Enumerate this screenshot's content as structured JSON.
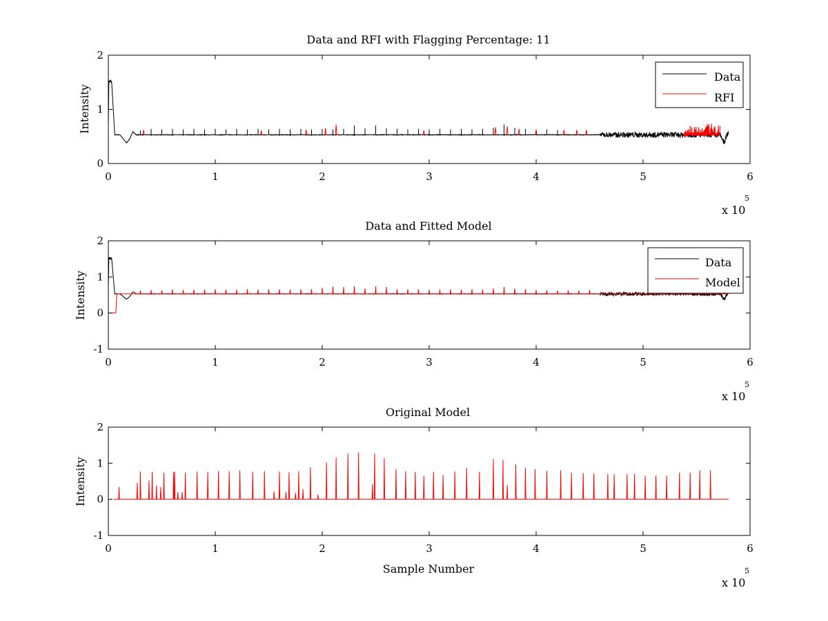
{
  "chart_data": [
    {
      "type": "line",
      "title": "Data and RFI with Flagging Percentage: 11",
      "xlabel": "",
      "ylabel": "Intensity",
      "xlim": [
        0,
        6
      ],
      "ylim": [
        0,
        2
      ],
      "x_ticks": [
        0,
        1,
        2,
        3,
        4,
        5,
        6
      ],
      "y_ticks": [
        0,
        1,
        2
      ],
      "x_multiplier": "x 10",
      "x_multiplier_exp": "5",
      "legend": {
        "position": "top-right",
        "entries": [
          {
            "label": "Data",
            "color": "#000000"
          },
          {
            "label": "RFI",
            "color": "#ff0000"
          }
        ]
      },
      "x_end": 5.8,
      "baseline": 0.53,
      "initial_peak": 1.55,
      "dip": {
        "x": 0.17,
        "value": 0.38
      },
      "end_dip": {
        "x": 5.76,
        "value": 0.38
      },
      "noisy_region": {
        "start": 4.6,
        "end": 5.8,
        "amplitude": 0.05
      },
      "rfi_dense_region": {
        "start": 5.38,
        "end": 5.72,
        "max": 0.74
      },
      "series": [
        {
          "name": "Data",
          "color": "#000000",
          "spikes": [
            [
              0.3,
              0.61
            ],
            [
              0.4,
              0.64
            ],
            [
              0.5,
              0.63
            ],
            [
              0.6,
              0.64
            ],
            [
              0.7,
              0.63
            ],
            [
              0.8,
              0.64
            ],
            [
              0.9,
              0.63
            ],
            [
              1.0,
              0.64
            ],
            [
              1.1,
              0.63
            ],
            [
              1.2,
              0.64
            ],
            [
              1.3,
              0.63
            ],
            [
              1.4,
              0.64
            ],
            [
              1.5,
              0.63
            ],
            [
              1.6,
              0.64
            ],
            [
              1.7,
              0.63
            ],
            [
              1.8,
              0.64
            ],
            [
              1.9,
              0.63
            ],
            [
              2.0,
              0.64
            ],
            [
              2.1,
              0.63
            ],
            [
              2.2,
              0.64
            ],
            [
              2.3,
              0.7
            ],
            [
              2.4,
              0.65
            ],
            [
              2.5,
              0.7
            ],
            [
              2.6,
              0.65
            ],
            [
              2.7,
              0.64
            ],
            [
              2.8,
              0.63
            ],
            [
              2.9,
              0.64
            ],
            [
              3.0,
              0.63
            ],
            [
              3.1,
              0.64
            ],
            [
              3.2,
              0.63
            ],
            [
              3.3,
              0.64
            ],
            [
              3.4,
              0.63
            ],
            [
              3.5,
              0.64
            ],
            [
              3.6,
              0.66
            ],
            [
              3.7,
              0.72
            ],
            [
              3.8,
              0.66
            ],
            [
              3.9,
              0.64
            ],
            [
              4.0,
              0.63
            ],
            [
              4.1,
              0.63
            ],
            [
              4.2,
              0.62
            ]
          ]
        },
        {
          "name": "RFI",
          "color": "#ff0000",
          "spikes": [
            [
              0.33,
              0.62
            ],
            [
              1.43,
              0.61
            ],
            [
              1.85,
              0.62
            ],
            [
              2.03,
              0.65
            ],
            [
              2.13,
              0.72
            ],
            [
              2.95,
              0.61
            ],
            [
              3.62,
              0.67
            ],
            [
              3.73,
              0.69
            ],
            [
              3.84,
              0.64
            ],
            [
              4.0,
              0.63
            ],
            [
              4.26,
              0.62
            ],
            [
              4.38,
              0.62
            ],
            [
              4.47,
              0.62
            ]
          ]
        }
      ]
    },
    {
      "type": "line",
      "title": "Data and Fitted Model",
      "xlabel": "",
      "ylabel": "Intensity",
      "xlim": [
        0,
        6
      ],
      "ylim": [
        -1,
        2
      ],
      "x_ticks": [
        0,
        1,
        2,
        3,
        4,
        5,
        6
      ],
      "y_ticks": [
        -1,
        0,
        1,
        2
      ],
      "x_multiplier": "x 10",
      "x_multiplier_exp": "5",
      "legend": {
        "position": "top-right",
        "entries": [
          {
            "label": "Data",
            "color": "#000000"
          },
          {
            "label": "Model",
            "color": "#ff0000"
          }
        ]
      },
      "x_end": 5.8,
      "baseline": 0.53,
      "initial_peak": 1.55,
      "model_start_step": {
        "x": 0.07,
        "value": 0.0
      },
      "dip": {
        "x": 0.17,
        "value": 0.38
      },
      "end_dip": {
        "x": 5.76,
        "value": 0.38
      },
      "noisy_region": {
        "start": 4.6,
        "end": 5.8,
        "amplitude": 0.05
      },
      "series": [
        {
          "name": "Data",
          "color": "#000000"
        },
        {
          "name": "Model",
          "color": "#ff0000",
          "spikes": [
            [
              0.3,
              0.62
            ],
            [
              0.4,
              0.64
            ],
            [
              0.5,
              0.63
            ],
            [
              0.6,
              0.66
            ],
            [
              0.7,
              0.64
            ],
            [
              0.8,
              0.65
            ],
            [
              0.9,
              0.65
            ],
            [
              1.0,
              0.66
            ],
            [
              1.1,
              0.65
            ],
            [
              1.2,
              0.65
            ],
            [
              1.3,
              0.66
            ],
            [
              1.4,
              0.65
            ],
            [
              1.5,
              0.66
            ],
            [
              1.6,
              0.66
            ],
            [
              1.7,
              0.65
            ],
            [
              1.8,
              0.66
            ],
            [
              1.9,
              0.66
            ],
            [
              2.0,
              0.7
            ],
            [
              2.1,
              0.73
            ],
            [
              2.2,
              0.72
            ],
            [
              2.3,
              0.74
            ],
            [
              2.4,
              0.68
            ],
            [
              2.5,
              0.74
            ],
            [
              2.6,
              0.72
            ],
            [
              2.7,
              0.66
            ],
            [
              2.8,
              0.66
            ],
            [
              2.9,
              0.66
            ],
            [
              3.0,
              0.65
            ],
            [
              3.1,
              0.65
            ],
            [
              3.2,
              0.66
            ],
            [
              3.3,
              0.65
            ],
            [
              3.4,
              0.66
            ],
            [
              3.5,
              0.65
            ],
            [
              3.6,
              0.68
            ],
            [
              3.7,
              0.72
            ],
            [
              3.8,
              0.68
            ],
            [
              3.9,
              0.66
            ],
            [
              4.0,
              0.64
            ],
            [
              4.1,
              0.63
            ],
            [
              4.2,
              0.62
            ],
            [
              4.3,
              0.63
            ],
            [
              4.4,
              0.62
            ],
            [
              4.5,
              0.64
            ]
          ]
        }
      ]
    },
    {
      "type": "line",
      "title": "Original Model",
      "xlabel": "Sample Number",
      "ylabel": "Intensity",
      "xlim": [
        0,
        6
      ],
      "ylim": [
        -1,
        2
      ],
      "x_ticks": [
        0,
        1,
        2,
        3,
        4,
        5,
        6
      ],
      "y_ticks": [
        -1,
        0,
        1,
        2
      ],
      "x_multiplier": "x 10",
      "x_multiplier_exp": "5",
      "x_start": 0.05,
      "x_end": 5.8,
      "baseline": 0.0,
      "series": [
        {
          "name": "",
          "color": "#ff0000",
          "spikes": [
            [
              0.1,
              0.34
            ],
            [
              0.27,
              0.45
            ],
            [
              0.3,
              0.77
            ],
            [
              0.38,
              0.52
            ],
            [
              0.41,
              0.76
            ],
            [
              0.45,
              0.38
            ],
            [
              0.49,
              0.34
            ],
            [
              0.52,
              0.74
            ],
            [
              0.61,
              0.75
            ],
            [
              0.62,
              0.77
            ],
            [
              0.65,
              0.2
            ],
            [
              0.69,
              0.2
            ],
            [
              0.72,
              0.74
            ],
            [
              0.83,
              0.77
            ],
            [
              0.93,
              0.76
            ],
            [
              1.03,
              0.78
            ],
            [
              1.13,
              0.78
            ],
            [
              1.23,
              0.8
            ],
            [
              1.35,
              0.76
            ],
            [
              1.46,
              0.78
            ],
            [
              1.55,
              0.22
            ],
            [
              1.6,
              0.77
            ],
            [
              1.66,
              0.2
            ],
            [
              1.69,
              0.75
            ],
            [
              1.75,
              0.18
            ],
            [
              1.78,
              0.78
            ],
            [
              1.82,
              0.28
            ],
            [
              1.89,
              0.89
            ],
            [
              1.96,
              0.13
            ],
            [
              2.04,
              1.02
            ],
            [
              2.13,
              1.16
            ],
            [
              2.24,
              1.27
            ],
            [
              2.34,
              1.3
            ],
            [
              2.47,
              0.42
            ],
            [
              2.49,
              1.27
            ],
            [
              2.58,
              1.14
            ],
            [
              2.69,
              0.84
            ],
            [
              2.78,
              0.78
            ],
            [
              2.87,
              0.76
            ],
            [
              2.95,
              0.65
            ],
            [
              3.04,
              0.76
            ],
            [
              3.13,
              0.67
            ],
            [
              3.24,
              0.77
            ],
            [
              3.35,
              0.87
            ],
            [
              3.47,
              0.76
            ],
            [
              3.6,
              1.12
            ],
            [
              3.69,
              1.09
            ],
            [
              3.73,
              0.4
            ],
            [
              3.81,
              0.97
            ],
            [
              3.9,
              0.87
            ],
            [
              3.99,
              0.84
            ],
            [
              4.1,
              0.78
            ],
            [
              4.23,
              0.8
            ],
            [
              4.33,
              0.74
            ],
            [
              4.44,
              0.73
            ],
            [
              4.54,
              0.72
            ],
            [
              4.67,
              0.7
            ],
            [
              4.73,
              0.7
            ],
            [
              4.85,
              0.7
            ],
            [
              4.92,
              0.7
            ],
            [
              5.02,
              0.66
            ],
            [
              5.12,
              0.66
            ],
            [
              5.22,
              0.66
            ],
            [
              5.34,
              0.74
            ],
            [
              5.44,
              0.74
            ],
            [
              5.53,
              0.8
            ],
            [
              5.63,
              0.8
            ]
          ]
        }
      ]
    }
  ]
}
